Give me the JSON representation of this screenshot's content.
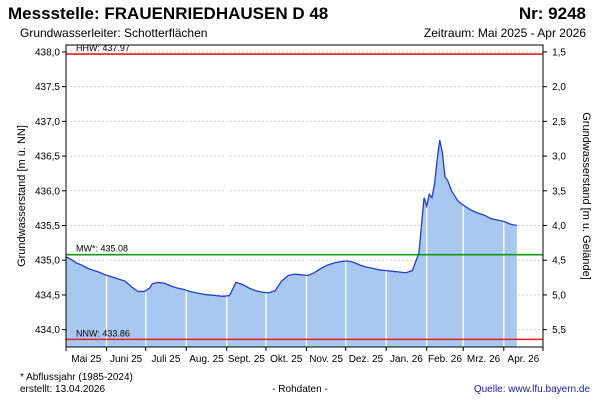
{
  "header": {
    "title": "Messstelle: FRAUENRIEDHAUSEN D 48",
    "number": "Nr: 9248",
    "aquifer": "Grundwasserleiter:   Schotterflächen",
    "period": "Zeitraum: Mai 2025 - Apr 2026"
  },
  "footer": {
    "footnote": "* Abflussjahr (1985-2024)",
    "created": "erstellt:  13.04.2026",
    "rohdaten": "- Rohdaten -",
    "source": "Quelle: www.lfu.bayern.de"
  },
  "colors": {
    "fill": "#a9c8f0",
    "line": "#1f3fcc",
    "hhw": "#e02020",
    "nnw": "#e02020",
    "mw": "#109a10",
    "grid": "#d0d0d0",
    "monthgrid": "#ffffff"
  },
  "chart_data": {
    "type": "area",
    "ylabel": "Grundwasserstand [m ü. NN]",
    "ylabel_right": "Grundwasserstand [m u. Gelände]",
    "ylim": [
      433.75,
      438.1
    ],
    "yticks": [
      "434,0",
      "434,5",
      "435,0",
      "435,5",
      "436,0",
      "436,5",
      "437,0",
      "437,5",
      "438,0"
    ],
    "ytick_values": [
      434.0,
      434.5,
      435.0,
      435.5,
      436.0,
      436.5,
      437.0,
      437.5,
      438.0
    ],
    "yticks_right": [
      "1,5",
      "2,0",
      "2,5",
      "3,0",
      "3,5",
      "4,0",
      "4,5",
      "5,0",
      "5,5"
    ],
    "ytick_right_values": [
      1.5,
      2.0,
      2.5,
      3.0,
      3.5,
      4.0,
      4.5,
      5.0,
      5.5
    ],
    "right_axis_offset": 439.5,
    "xticks": [
      "Mai 25",
      "Juni 25",
      "Juli 25",
      "Aug. 25",
      "Sept. 25",
      "Okt. 25",
      "Nov. 25",
      "Dez. 25",
      "Jan. 26",
      "Feb. 26",
      "Mrz. 26",
      "Apr. 26"
    ],
    "month_days": [
      31,
      30,
      31,
      31,
      30,
      31,
      30,
      31,
      31,
      28,
      31,
      30
    ],
    "reference_lines": [
      {
        "label": "HHW: 437.97",
        "value": 437.97,
        "kind": "hhw"
      },
      {
        "label": "MW*: 435.08",
        "value": 435.08,
        "kind": "mw"
      },
      {
        "label": "NNW: 433.86",
        "value": 433.86,
        "kind": "nnw"
      }
    ],
    "series": [
      {
        "x": [
          0,
          4,
          8,
          12,
          16,
          20,
          25,
          30,
          35,
          40,
          45,
          50,
          55,
          60,
          64,
          66,
          70,
          75,
          80,
          85,
          90,
          95,
          100,
          105,
          110,
          115,
          120,
          125,
          128,
          130,
          135,
          140,
          145,
          150,
          155,
          160,
          165,
          170,
          175,
          180,
          185,
          190,
          195,
          200,
          205,
          210,
          215,
          220,
          225,
          230,
          235,
          240,
          245,
          250,
          255,
          260,
          265,
          270,
          272,
          274,
          276,
          278,
          280,
          282,
          284,
          286,
          288,
          290,
          292,
          295,
          300,
          305,
          310,
          315,
          320,
          325,
          330,
          335,
          340,
          345
        ],
        "y": [
          435.05,
          435.01,
          434.96,
          434.93,
          434.89,
          434.86,
          434.83,
          434.79,
          434.76,
          434.73,
          434.7,
          434.62,
          434.55,
          434.55,
          434.6,
          434.66,
          434.68,
          434.67,
          434.63,
          434.6,
          434.58,
          434.55,
          434.53,
          434.51,
          434.5,
          434.49,
          434.48,
          434.49,
          434.6,
          434.68,
          434.65,
          434.6,
          434.56,
          434.54,
          434.53,
          434.56,
          434.7,
          434.78,
          434.8,
          434.79,
          434.78,
          434.82,
          434.88,
          434.93,
          434.96,
          434.98,
          434.99,
          434.97,
          434.93,
          434.9,
          434.88,
          434.86,
          434.85,
          434.84,
          434.83,
          434.82,
          434.85,
          435.1,
          435.5,
          435.9,
          435.78,
          435.95,
          435.9,
          436.1,
          436.45,
          436.73,
          436.55,
          436.2,
          436.15,
          436.0,
          435.85,
          435.78,
          435.72,
          435.68,
          435.65,
          435.6,
          435.58,
          435.56,
          435.52,
          435.5
        ]
      }
    ]
  }
}
